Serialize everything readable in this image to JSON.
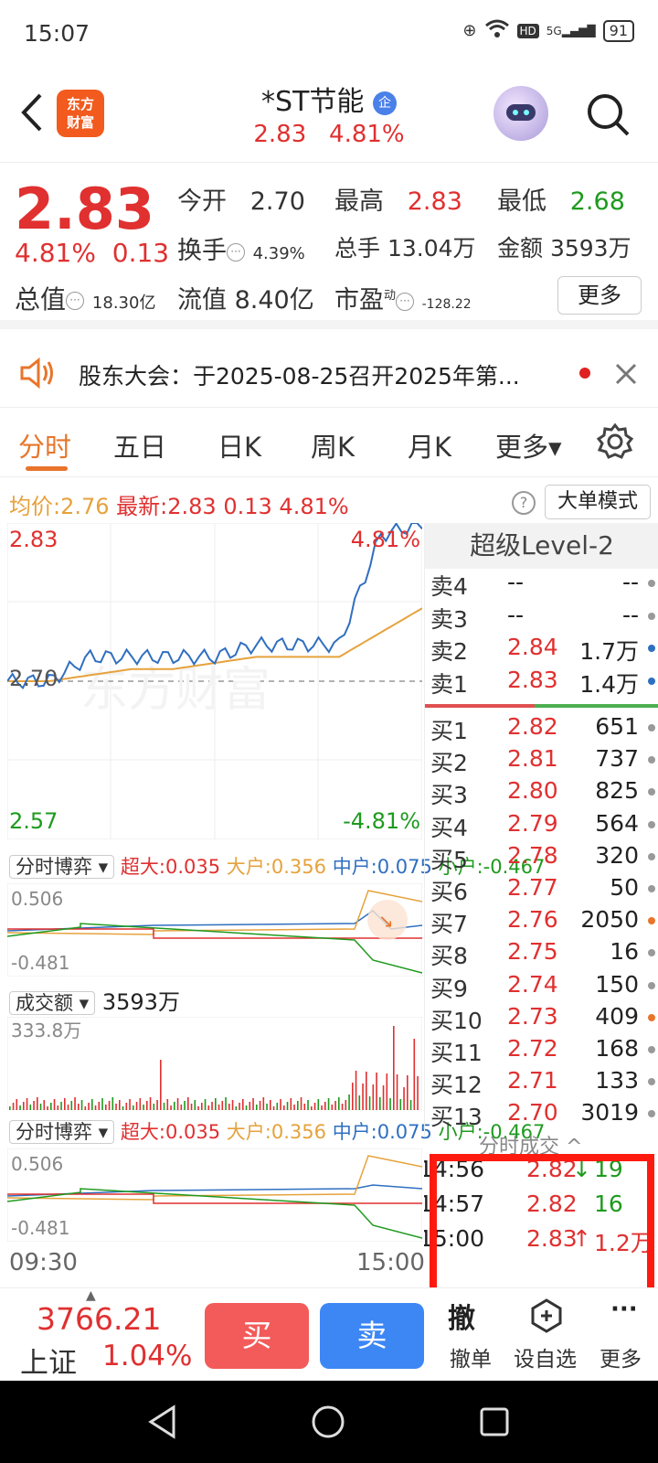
{
  "status": {
    "time": "15:07",
    "network": "5G",
    "hd": "HD",
    "battery": "91"
  },
  "header": {
    "logo": "东方\n财富",
    "title": "*ST节能",
    "title_tag": "企",
    "sub_price": "2.83",
    "sub_pct": "4.81%"
  },
  "quote": {
    "price": "2.83",
    "pct": "4.81%",
    "chg": "0.13",
    "total_mv_label": "总值",
    "total_mv": "18.30亿",
    "open_label": "今开",
    "open": "2.70",
    "high_label": "最高",
    "high": "2.83",
    "low_label": "最低",
    "low": "2.68",
    "turnover_label": "换手",
    "turnover": "4.39%",
    "volume_label": "总手",
    "volume": "13.04万",
    "amount_label": "金额",
    "amount": "3593万",
    "float_mv_label": "流值",
    "float_mv": "8.40亿",
    "pe_label": "市盈",
    "pe_sup": "动",
    "pe": "-128.22",
    "more_label": "更多"
  },
  "notice": {
    "text": "股东大会：于2025-08-25召开2025年第..."
  },
  "tabs": [
    {
      "label": "分时"
    },
    {
      "label": "五日"
    },
    {
      "label": "日K"
    },
    {
      "label": "周K"
    },
    {
      "label": "月K"
    },
    {
      "label": "更多▾"
    }
  ],
  "infoline": {
    "avg_label": "均价:",
    "avg": "2.76",
    "latest_label": "最新:",
    "latest": "2.83",
    "chg": "0.13",
    "pct": "4.81%",
    "mode_btn": "大单模式",
    "help": "?"
  },
  "chart": {
    "y_top": "2.83",
    "y_mid": "2.70",
    "y_bot": "2.57",
    "pct_top": "4.81%",
    "pct_bot": "-4.81%",
    "x_start": "09:30",
    "x_end": "15:00",
    "watermark": "东方财富"
  },
  "chart_data": [
    {
      "type": "line",
      "series": [
        {
          "name": "最新",
          "color": "#2f6fc0",
          "x": [
            "09:30",
            "10:00",
            "10:30",
            "11:00",
            "11:30",
            "13:00",
            "13:30",
            "14:00",
            "14:30",
            "14:45",
            "15:00"
          ],
          "values": [
            2.7,
            2.7,
            2.72,
            2.72,
            2.72,
            2.72,
            2.73,
            2.73,
            2.73,
            2.82,
            2.83
          ]
        },
        {
          "name": "均价",
          "color": "#e6a23c",
          "x": [
            "09:30",
            "10:00",
            "10:30",
            "11:00",
            "11:30",
            "13:00",
            "13:30",
            "14:00",
            "14:30",
            "14:45",
            "15:00"
          ],
          "values": [
            2.7,
            2.7,
            2.705,
            2.71,
            2.71,
            2.715,
            2.72,
            2.72,
            2.72,
            2.74,
            2.76
          ]
        }
      ],
      "ylim": [
        2.57,
        2.83
      ]
    }
  ],
  "flow1": {
    "selector": "分时博弈",
    "super_label": "超大:",
    "super": "0.035",
    "large_label": "大户:",
    "large": "0.356",
    "mid_label": "中户:",
    "mid": "0.075",
    "small_label": "小户:",
    "small": "-0.467",
    "max": "0.506",
    "min": "-0.481"
  },
  "volume_panel": {
    "selector": "成交额",
    "value": "3593万",
    "max": "333.8万"
  },
  "flow2": {
    "selector": "分时博弈",
    "super_label": "超大:",
    "super": "0.035",
    "large_label": "大户:",
    "large": "0.356",
    "mid_label": "中户:",
    "mid": "0.075",
    "small_label": "小户:",
    "small": "-0.467",
    "max": "0.506",
    "min": "-0.481"
  },
  "level2": {
    "title": "超级Level-2",
    "asks": [
      {
        "label": "卖4",
        "price": "--",
        "vol": "--",
        "dot": "#999"
      },
      {
        "label": "卖3",
        "price": "--",
        "vol": "--",
        "dot": "#999"
      },
      {
        "label": "卖2",
        "price": "2.84",
        "vol": "1.7万",
        "dot": "#2f6fc0"
      },
      {
        "label": "卖1",
        "price": "2.83",
        "vol": "1.4万",
        "dot": "#2f6fc0"
      }
    ],
    "bids": [
      {
        "label": "买1",
        "price": "2.82",
        "vol": "651",
        "dot": "#999"
      },
      {
        "label": "买2",
        "price": "2.81",
        "vol": "737",
        "dot": "#999"
      },
      {
        "label": "买3",
        "price": "2.80",
        "vol": "825",
        "dot": "#999"
      },
      {
        "label": "买4",
        "price": "2.79",
        "vol": "564",
        "dot": "#999"
      },
      {
        "label": "买5",
        "price": "2.78",
        "vol": "320",
        "dot": "#999"
      },
      {
        "label": "买6",
        "price": "2.77",
        "vol": "50",
        "dot": "#999"
      },
      {
        "label": "买7",
        "price": "2.76",
        "vol": "2050",
        "dot": "#e8752b"
      },
      {
        "label": "买8",
        "price": "2.75",
        "vol": "16",
        "dot": "#999"
      },
      {
        "label": "买9",
        "price": "2.74",
        "vol": "150",
        "dot": "#999"
      },
      {
        "label": "买10",
        "price": "2.73",
        "vol": "409",
        "dot": "#e8752b"
      },
      {
        "label": "买11",
        "price": "2.72",
        "vol": "168",
        "dot": "#999"
      },
      {
        "label": "买12",
        "price": "2.71",
        "vol": "133",
        "dot": "#999"
      },
      {
        "label": "买13",
        "price": "2.70",
        "vol": "3019",
        "dot": "#999"
      }
    ]
  },
  "trades": {
    "title": "分时成交 ^",
    "rows": [
      {
        "time": "14:56",
        "price": "2.82",
        "arrow": "↓",
        "vol": "19"
      },
      {
        "time": "14:57",
        "price": "2.82",
        "arrow": "",
        "vol": "16"
      },
      {
        "time": "15:00",
        "price": "2.83",
        "arrow": "↑",
        "vol": "1.2万"
      }
    ]
  },
  "bottom": {
    "index_value": "3766.21",
    "index_name": "上证",
    "index_pct": "1.04%",
    "buy": "买",
    "sell": "卖",
    "cancel": "撤单",
    "cancel_icon": "撤",
    "fav": "设自选",
    "more": "更多"
  }
}
